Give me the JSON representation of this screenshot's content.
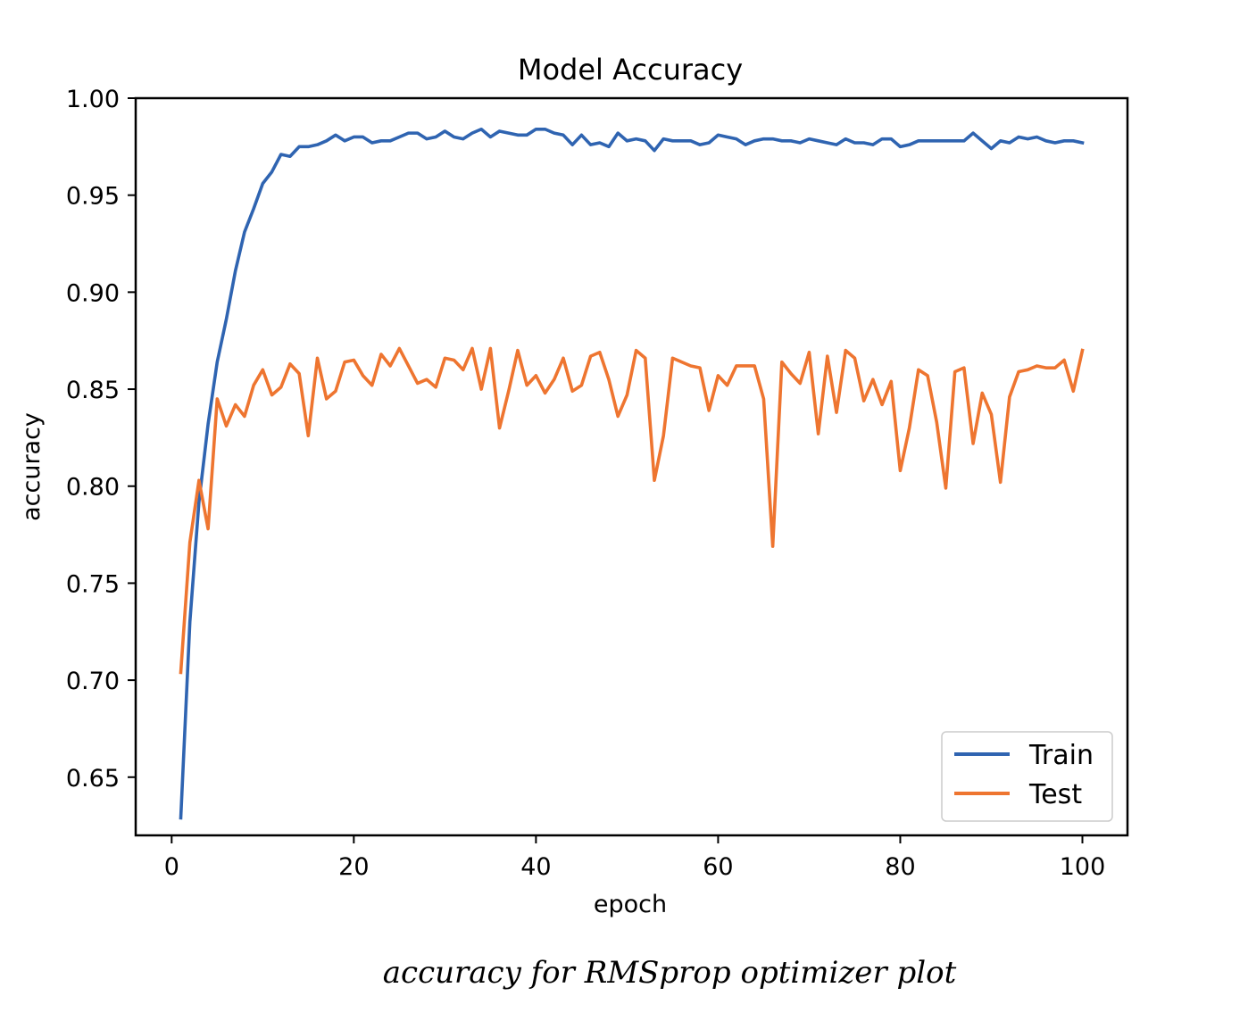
{
  "chart_data": {
    "type": "line",
    "title": "Model Accuracy",
    "xlabel": "epoch",
    "ylabel": "accuracy",
    "xlim": [
      -3.95,
      104.95
    ],
    "ylim": [
      0.62,
      1.0
    ],
    "xticks": [
      0,
      20,
      40,
      60,
      80,
      100
    ],
    "xtick_labels": [
      "0",
      "20",
      "40",
      "60",
      "80",
      "100"
    ],
    "yticks": [
      0.65,
      0.7,
      0.75,
      0.8,
      0.85,
      0.9,
      0.95,
      1.0
    ],
    "ytick_labels": [
      "0.65",
      "0.70",
      "0.75",
      "0.80",
      "0.85",
      "0.90",
      "0.95",
      "1.00"
    ],
    "grid": false,
    "legend_position": "lower-right",
    "x": [
      1,
      2,
      3,
      4,
      5,
      6,
      7,
      8,
      9,
      10,
      11,
      12,
      13,
      14,
      15,
      16,
      17,
      18,
      19,
      20,
      21,
      22,
      23,
      24,
      25,
      26,
      27,
      28,
      29,
      30,
      31,
      32,
      33,
      34,
      35,
      36,
      37,
      38,
      39,
      40,
      41,
      42,
      43,
      44,
      45,
      46,
      47,
      48,
      49,
      50,
      51,
      52,
      53,
      54,
      55,
      56,
      57,
      58,
      59,
      60,
      61,
      62,
      63,
      64,
      65,
      66,
      67,
      68,
      69,
      70,
      71,
      72,
      73,
      74,
      75,
      76,
      77,
      78,
      79,
      80,
      81,
      82,
      83,
      84,
      85,
      86,
      87,
      88,
      89,
      90,
      91,
      92,
      93,
      94,
      95,
      96,
      97,
      98,
      99,
      100
    ],
    "series": [
      {
        "name": "Train",
        "color": "#2f64b1",
        "values": [
          0.629,
          0.73,
          0.792,
          0.832,
          0.864,
          0.886,
          0.911,
          0.931,
          0.943,
          0.956,
          0.962,
          0.971,
          0.97,
          0.975,
          0.975,
          0.976,
          0.978,
          0.981,
          0.978,
          0.98,
          0.98,
          0.977,
          0.978,
          0.978,
          0.98,
          0.982,
          0.982,
          0.979,
          0.98,
          0.983,
          0.98,
          0.979,
          0.982,
          0.984,
          0.98,
          0.983,
          0.982,
          0.981,
          0.981,
          0.984,
          0.984,
          0.982,
          0.981,
          0.976,
          0.981,
          0.976,
          0.977,
          0.975,
          0.982,
          0.978,
          0.979,
          0.978,
          0.973,
          0.979,
          0.978,
          0.978,
          0.978,
          0.976,
          0.977,
          0.981,
          0.98,
          0.979,
          0.976,
          0.978,
          0.979,
          0.979,
          0.978,
          0.978,
          0.977,
          0.979,
          0.978,
          0.977,
          0.976,
          0.979,
          0.977,
          0.977,
          0.976,
          0.979,
          0.979,
          0.975,
          0.976,
          0.978,
          0.978,
          0.978,
          0.978,
          0.978,
          0.978,
          0.982,
          0.978,
          0.974,
          0.978,
          0.977,
          0.98,
          0.979,
          0.98,
          0.978,
          0.977,
          0.978,
          0.978,
          0.977
        ]
      },
      {
        "name": "Test",
        "color": "#ee7530",
        "values": [
          0.704,
          0.771,
          0.803,
          0.778,
          0.845,
          0.831,
          0.842,
          0.836,
          0.852,
          0.86,
          0.847,
          0.851,
          0.863,
          0.858,
          0.826,
          0.866,
          0.845,
          0.849,
          0.864,
          0.865,
          0.857,
          0.852,
          0.868,
          0.862,
          0.871,
          0.862,
          0.853,
          0.855,
          0.851,
          0.866,
          0.865,
          0.86,
          0.871,
          0.85,
          0.871,
          0.83,
          0.849,
          0.87,
          0.852,
          0.857,
          0.848,
          0.855,
          0.866,
          0.849,
          0.852,
          0.867,
          0.869,
          0.855,
          0.836,
          0.847,
          0.87,
          0.866,
          0.803,
          0.826,
          0.866,
          0.864,
          0.862,
          0.861,
          0.839,
          0.857,
          0.852,
          0.862,
          0.862,
          0.862,
          0.845,
          0.769,
          0.864,
          0.858,
          0.853,
          0.869,
          0.827,
          0.867,
          0.838,
          0.87,
          0.866,
          0.844,
          0.855,
          0.842,
          0.854,
          0.808,
          0.83,
          0.86,
          0.857,
          0.833,
          0.799,
          0.859,
          0.861,
          0.822,
          0.848,
          0.837,
          0.802,
          0.846,
          0.859,
          0.86,
          0.862,
          0.861,
          0.861,
          0.865,
          0.849,
          0.87
        ]
      }
    ]
  },
  "caption": "accuracy for RMSprop optimizer plot"
}
